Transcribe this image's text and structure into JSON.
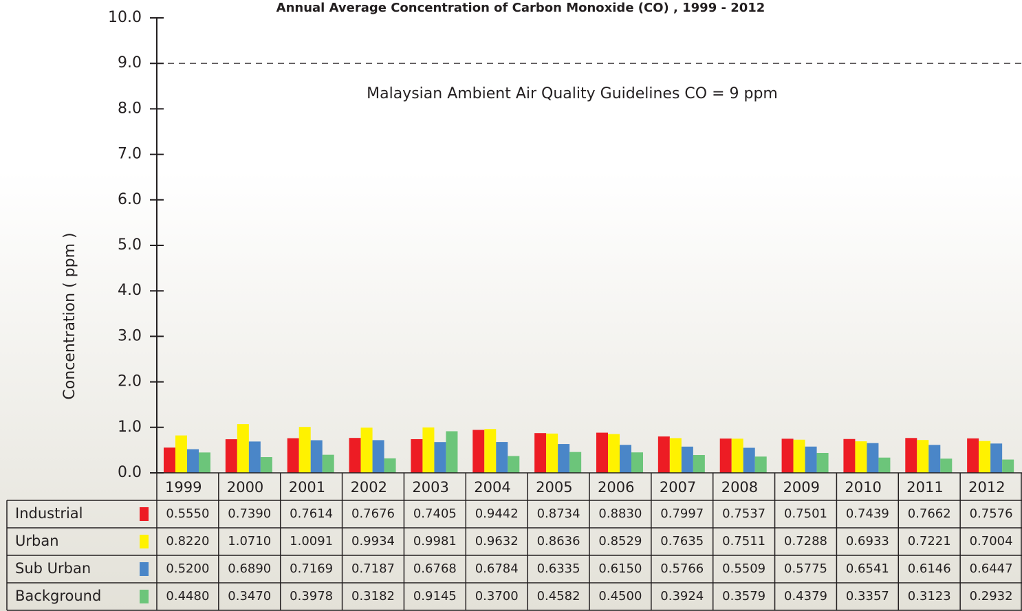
{
  "chart_data": {
    "type": "bar",
    "title": "Annual Average Concentration of Carbon Monoxide (CO) , 1999 - 2012",
    "y_label": "Concentration ( ppm )",
    "annotation": "Malaysian Ambient Air Quality Guidelines CO = 9 ppm",
    "threshold": 9,
    "categories": [
      "1999",
      "2000",
      "2001",
      "2002",
      "2003",
      "2004",
      "2005",
      "2006",
      "2007",
      "2008",
      "2009",
      "2010",
      "2011",
      "2012"
    ],
    "series": [
      {
        "name": "Industrial",
        "color": "#ed1c24",
        "values": [
          0.555,
          0.739,
          0.7614,
          0.7676,
          0.7405,
          0.9442,
          0.8734,
          0.883,
          0.7997,
          0.7537,
          0.7501,
          0.7439,
          0.7662,
          0.7576
        ],
        "value_labels": [
          "0.5550",
          "0.7390",
          "0.7614",
          "0.7676",
          "0.7405",
          "0.9442",
          "0.8734",
          "0.8830",
          "0.7997",
          "0.7537",
          "0.7501",
          "0.7439",
          "0.7662",
          "0.7576"
        ]
      },
      {
        "name": "Urban",
        "color": "#fff200",
        "values": [
          0.822,
          1.071,
          1.0091,
          0.9934,
          0.9981,
          0.9632,
          0.8636,
          0.8529,
          0.7635,
          0.7511,
          0.7288,
          0.6933,
          0.7221,
          0.7004
        ],
        "value_labels": [
          "0.8220",
          "1.0710",
          "1.0091",
          "0.9934",
          "0.9981",
          "0.9632",
          "0.8636",
          "0.8529",
          "0.7635",
          "0.7511",
          "0.7288",
          "0.6933",
          "0.7221",
          "0.7004"
        ]
      },
      {
        "name": "Sub Urban",
        "color": "#4a86c8",
        "values": [
          0.52,
          0.689,
          0.7169,
          0.7187,
          0.6768,
          0.6784,
          0.6335,
          0.615,
          0.5766,
          0.5509,
          0.5775,
          0.6541,
          0.6146,
          0.6447
        ],
        "value_labels": [
          "0.5200",
          "0.6890",
          "0.7169",
          "0.7187",
          "0.6768",
          "0.6784",
          "0.6335",
          "0.6150",
          "0.5766",
          "0.5509",
          "0.5775",
          "0.6541",
          "0.6146",
          "0.6447"
        ]
      },
      {
        "name": "Background",
        "color": "#6cc57a",
        "values": [
          0.448,
          0.347,
          0.3978,
          0.3182,
          0.9145,
          0.37,
          0.4582,
          0.45,
          0.3924,
          0.3579,
          0.4379,
          0.3357,
          0.3123,
          0.2932
        ],
        "value_labels": [
          "0.4480",
          "0.3470",
          "0.3978",
          "0.3182",
          "0.9145",
          "0.3700",
          "0.4582",
          "0.4500",
          "0.3924",
          "0.3579",
          "0.4379",
          "0.3357",
          "0.3123",
          "0.2932"
        ]
      }
    ],
    "ylim": [
      0,
      10
    ],
    "yticks": [
      {
        "value": 0,
        "label": "0.0"
      },
      {
        "value": 1,
        "label": "1.0"
      },
      {
        "value": 2,
        "label": "2.0"
      },
      {
        "value": 3,
        "label": "3.0"
      },
      {
        "value": 4,
        "label": "4.0"
      },
      {
        "value": 5,
        "label": "5.0"
      },
      {
        "value": 6,
        "label": "6.0"
      },
      {
        "value": 7,
        "label": "7.0"
      },
      {
        "value": 8,
        "label": "8.0"
      },
      {
        "value": 9,
        "label": "9.0"
      },
      {
        "value": 10,
        "label": "10.0"
      }
    ]
  }
}
